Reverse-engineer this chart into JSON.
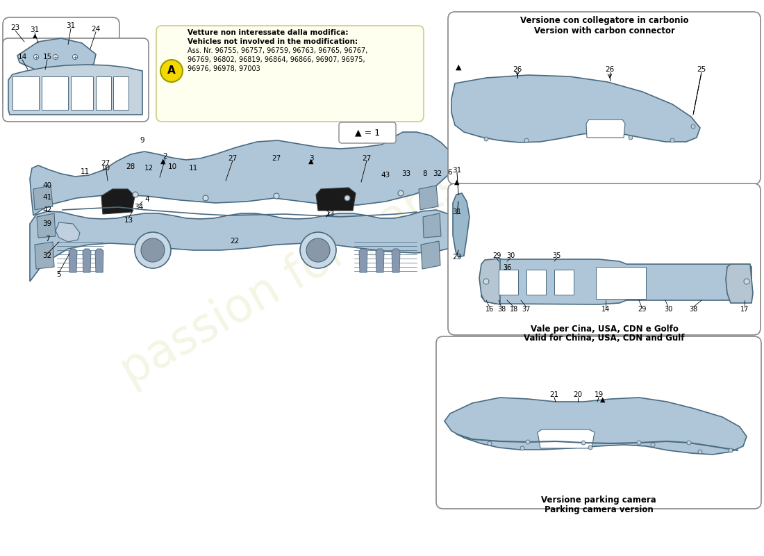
{
  "bg_color": "#ffffff",
  "part_color": "#aec6d8",
  "part_edge_color": "#4a6a80",
  "note_box_color": "#fffff0",
  "note_box_edge": "#cccc88",
  "yellow_circle_color": "#f5d800",
  "watermark_color": "#e8e8c0",
  "year_color": "#d4c060",
  "note_text_1": "Vetture non interessate dalla modifica:",
  "note_text_2": "Vehicles not involved in the modification:",
  "note_text_3": "Ass. Nr. 96755, 96757, 96759, 96763, 96765, 96767,",
  "note_text_4": "96769, 96802, 96819, 96864, 96866, 96907, 96975,",
  "note_text_5": "96976, 96978, 97003",
  "carbon_text_1": "Versione con collegatore in carbonio",
  "carbon_text_2": "Version with carbon connector",
  "china_text_1": "Vale per Cina, USA, CDN e Golfo",
  "china_text_2": "Valid for China, USA, CDN and Gulf",
  "parking_text_1": "Versione parking camera",
  "parking_text_2": "Parking camera version",
  "legend_text": "▲ = 1"
}
